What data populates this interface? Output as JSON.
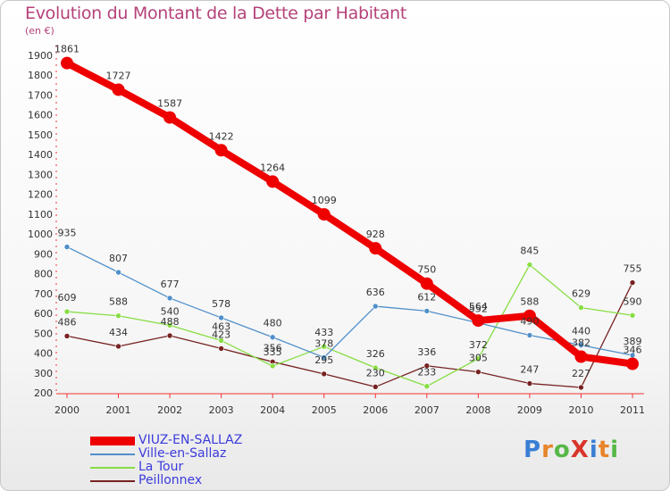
{
  "title": "Evolution du Montant de la Dette par Habitant",
  "subtitle": "(en €)",
  "logo": "ProXiti",
  "chart_data": {
    "type": "line",
    "x": [
      "2000",
      "2001",
      "2002",
      "2003",
      "2004",
      "2005",
      "2006",
      "2007",
      "2008",
      "2009",
      "2010",
      "2011"
    ],
    "ylim": [
      200,
      1900
    ],
    "yticks": [
      200,
      300,
      400,
      500,
      600,
      700,
      800,
      900,
      1000,
      1100,
      1200,
      1300,
      1400,
      1500,
      1600,
      1700,
      1800,
      1900
    ],
    "grid": false,
    "legend_position": "bottom-left",
    "series": [
      {
        "name": "VIUZ-EN-SALLAZ",
        "color": "#ee0000",
        "values": [
          1861,
          1727,
          1587,
          1422,
          1264,
          1099,
          928,
          750,
          564,
          588,
          382,
          346
        ]
      },
      {
        "name": "Ville-en-Sallaz",
        "color": "#4f8fc9",
        "values": [
          935,
          807,
          677,
          578,
          480,
          378,
          636,
          612,
          552,
          490,
          440,
          389
        ]
      },
      {
        "name": "La Tour",
        "color": "#88dd44",
        "values": [
          609,
          588,
          540,
          463,
          335,
          433,
          326,
          233,
          372,
          845,
          629,
          590
        ]
      },
      {
        "name": "Peillonnex",
        "color": "#772222",
        "values": [
          486,
          434,
          488,
          423,
          356,
          295,
          230,
          336,
          305,
          247,
          227,
          755
        ]
      }
    ]
  }
}
